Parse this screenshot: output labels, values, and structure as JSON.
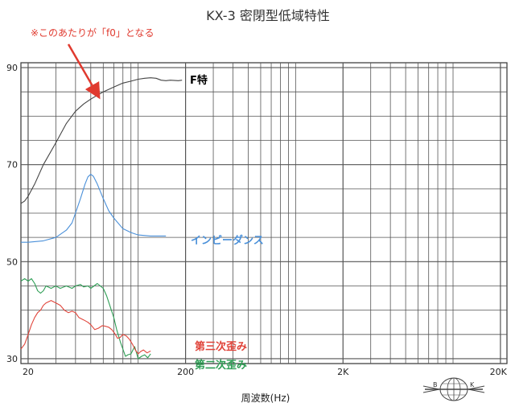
{
  "chart_data": {
    "type": "line",
    "title": "KX-3 密閉型低域特性",
    "xlabel": "周波数(Hz)",
    "ylabel": "",
    "x_scale": "log",
    "xlim": [
      18,
      22000
    ],
    "ylim": [
      29,
      91
    ],
    "x_ticks": [
      {
        "value": 20,
        "label": "20"
      },
      {
        "value": 200,
        "label": "200"
      },
      {
        "value": 2000,
        "label": "2K"
      },
      {
        "value": 20000,
        "label": "20K"
      }
    ],
    "y_ticks": [
      {
        "value": 90,
        "label": "90"
      },
      {
        "value": 70,
        "label": "70"
      },
      {
        "value": 50,
        "label": "50"
      },
      {
        "value": 30,
        "label": "30"
      }
    ],
    "grid": true,
    "series": [
      {
        "name": "F特",
        "color": "#444444",
        "points": [
          [
            18,
            62
          ],
          [
            19,
            62.5
          ],
          [
            20,
            63.5
          ],
          [
            22,
            66
          ],
          [
            25,
            70
          ],
          [
            30,
            74.5
          ],
          [
            35,
            78.5
          ],
          [
            40,
            81
          ],
          [
            45,
            82.5
          ],
          [
            50,
            83.5
          ],
          [
            60,
            85
          ],
          [
            70,
            86
          ],
          [
            80,
            86.8
          ],
          [
            90,
            87.2
          ],
          [
            100,
            87.6
          ],
          [
            110,
            87.8
          ],
          [
            120,
            87.9
          ],
          [
            130,
            87.8
          ],
          [
            140,
            87.4
          ],
          [
            150,
            87.3
          ],
          [
            160,
            87.4
          ],
          [
            180,
            87.3
          ],
          [
            190,
            87.4
          ]
        ]
      },
      {
        "name": "インピーダンス",
        "color": "#4a90d9",
        "points": [
          [
            18,
            54
          ],
          [
            20,
            54
          ],
          [
            25,
            54.3
          ],
          [
            30,
            55
          ],
          [
            35,
            56.5
          ],
          [
            38,
            58
          ],
          [
            40,
            60
          ],
          [
            43,
            63
          ],
          [
            46,
            66
          ],
          [
            48,
            67.5
          ],
          [
            50,
            68
          ],
          [
            52,
            67.6
          ],
          [
            55,
            66
          ],
          [
            60,
            63
          ],
          [
            65,
            60.5
          ],
          [
            70,
            59
          ],
          [
            80,
            56.8
          ],
          [
            90,
            56
          ],
          [
            100,
            55.5
          ],
          [
            120,
            55.3
          ],
          [
            150,
            55.3
          ]
        ]
      },
      {
        "name": "第二次歪み",
        "color": "#2e9e55",
        "points": [
          [
            18,
            46
          ],
          [
            19,
            46.5
          ],
          [
            20,
            46
          ],
          [
            21,
            46.5
          ],
          [
            22,
            45.5
          ],
          [
            23,
            44
          ],
          [
            24,
            43.5
          ],
          [
            25,
            44
          ],
          [
            26,
            45
          ],
          [
            28,
            44.5
          ],
          [
            30,
            45
          ],
          [
            32,
            44.5
          ],
          [
            35,
            45
          ],
          [
            38,
            44.5
          ],
          [
            40,
            45
          ],
          [
            43,
            45.3
          ],
          [
            45,
            44.8
          ],
          [
            48,
            45
          ],
          [
            50,
            44.5
          ],
          [
            55,
            45.5
          ],
          [
            60,
            44.5
          ],
          [
            63,
            43
          ],
          [
            66,
            41
          ],
          [
            70,
            38.5
          ],
          [
            73,
            36
          ],
          [
            77,
            33.5
          ],
          [
            80,
            32
          ],
          [
            83,
            30.5
          ],
          [
            86,
            30.8
          ],
          [
            90,
            31
          ],
          [
            95,
            32.5
          ],
          [
            98,
            31
          ],
          [
            100,
            30
          ],
          [
            105,
            30.5
          ],
          [
            110,
            30.8
          ],
          [
            115,
            30.2
          ],
          [
            120,
            31
          ]
        ]
      },
      {
        "name": "第三次歪み",
        "color": "#e0443a",
        "points": [
          [
            18,
            32
          ],
          [
            19,
            33
          ],
          [
            20,
            35
          ],
          [
            21,
            37
          ],
          [
            22,
            38.5
          ],
          [
            23,
            39.5
          ],
          [
            24,
            40
          ],
          [
            25,
            41
          ],
          [
            26,
            41.5
          ],
          [
            28,
            42
          ],
          [
            30,
            41.5
          ],
          [
            32,
            41
          ],
          [
            34,
            40
          ],
          [
            36,
            39.5
          ],
          [
            38,
            39.8
          ],
          [
            40,
            39.5
          ],
          [
            42,
            38.5
          ],
          [
            45,
            38
          ],
          [
            48,
            37.5
          ],
          [
            50,
            37
          ],
          [
            53,
            36
          ],
          [
            56,
            36.3
          ],
          [
            59,
            36.8
          ],
          [
            62,
            36.7
          ],
          [
            65,
            36.5
          ],
          [
            68,
            36
          ],
          [
            71,
            35.2
          ],
          [
            74,
            34.2
          ],
          [
            77,
            34.4
          ],
          [
            80,
            35
          ],
          [
            84,
            34.7
          ],
          [
            88,
            34
          ],
          [
            92,
            33
          ],
          [
            96,
            31.8
          ],
          [
            100,
            31
          ],
          [
            104,
            31.5
          ],
          [
            108,
            31.8
          ],
          [
            114,
            31.2
          ],
          [
            120,
            31.6
          ]
        ]
      }
    ],
    "series_labels": [
      {
        "series": "F特",
        "text": "F特",
        "color": "#000000"
      },
      {
        "series": "インピーダンス",
        "text": "インピーダンス",
        "color": "#4a90d9"
      },
      {
        "series": "第三次歪み",
        "text": "第三次歪み",
        "color": "#e0443a"
      },
      {
        "series": "第二次歪み",
        "text": "第二次歪み",
        "color": "#2e9e55"
      }
    ],
    "annotation": {
      "text": "※このあたりが「f0」となる",
      "color": "#e03a2f"
    },
    "logo": {
      "text_left": "B",
      "text_right": "K"
    }
  }
}
